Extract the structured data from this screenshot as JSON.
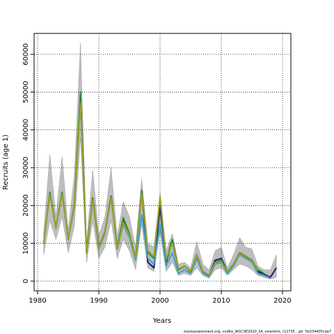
{
  "chart_data": {
    "type": "line",
    "xlabel": "Years",
    "ylabel": "Recruits (age 1)",
    "footnote": "stockassessment.org, cod6a_WGCSE2020_1A_newretro, r12735 , git: 5b334405cda7",
    "x": [
      1981,
      1982,
      1983,
      1984,
      1985,
      1986,
      1987,
      1988,
      1989,
      1990,
      1991,
      1992,
      1993,
      1994,
      1995,
      1996,
      1997,
      1998,
      1999,
      2000,
      2001,
      2002,
      2003,
      2004,
      2005,
      2006,
      2007,
      2008,
      2009,
      2010,
      2011,
      2012,
      2013,
      2014,
      2015,
      2016,
      2017,
      2018,
      2019
    ],
    "band": {
      "color": "#bebebe",
      "upper": [
        13000,
        33500,
        17000,
        33000,
        13500,
        28000,
        63000,
        10000,
        29500,
        12000,
        17000,
        30000,
        12000,
        21000,
        17000,
        9000,
        27000,
        10000,
        9000,
        23000,
        8000,
        12500,
        4500,
        5000,
        3500,
        10500,
        4500,
        3000,
        8000,
        9000,
        3500,
        7000,
        11500,
        9000,
        8500,
        4000,
        3000,
        3000,
        7000
      ],
      "lower": [
        7000,
        16000,
        11000,
        17000,
        7500,
        14500,
        38000,
        5000,
        16000,
        6000,
        9000,
        16000,
        6000,
        11000,
        8000,
        3000,
        15000,
        3500,
        2500,
        13000,
        2500,
        5000,
        1500,
        2000,
        1500,
        3500,
        1500,
        700,
        3000,
        3500,
        1500,
        3000,
        4500,
        4000,
        3000,
        1500,
        1000,
        500,
        1000
      ]
    },
    "series": [
      {
        "color": "#1a1a6e",
        "values": [
          10000,
          23500,
          14000,
          23500,
          11000,
          20000,
          49000,
          7500,
          22000,
          9000,
          13000,
          22500,
          9000,
          16500,
          12500,
          6000,
          23500,
          5000,
          3500,
          20000,
          5000,
          10500,
          3000,
          4000,
          2500,
          7000,
          2500,
          1500,
          5500,
          6000,
          2500,
          4500,
          7500,
          6500,
          5500,
          2500,
          1800,
          1000,
          3500
        ]
      },
      {
        "color": "#3aa0d0",
        "values": [
          10000,
          23500,
          14000,
          23500,
          11000,
          20000,
          48500,
          7500,
          21500,
          8500,
          12500,
          22000,
          8500,
          15000,
          11500,
          5500,
          17500,
          6000,
          4500,
          15000,
          4000,
          7500,
          2000,
          3000,
          2000,
          6000,
          2000,
          1200,
          4500,
          5000,
          2000,
          4000,
          7000,
          6000,
          5000,
          2000,
          1500,
          800,
          null
        ]
      },
      {
        "color": "#2e8b2e",
        "values": [
          10000,
          23500,
          14000,
          23500,
          11000,
          20000,
          50000,
          7500,
          22000,
          9000,
          13000,
          22500,
          9000,
          16800,
          12500,
          6000,
          24000,
          7500,
          6000,
          22000,
          5500,
          11000,
          3000,
          4000,
          2500,
          7000,
          2500,
          1500,
          5000,
          5500,
          2500,
          4500,
          7500,
          6500,
          5500,
          3000,
          2000,
          null,
          null
        ]
      },
      {
        "color": "#9aa02a",
        "values": [
          10000,
          23000,
          14000,
          23000,
          11000,
          19500,
          47000,
          7300,
          21500,
          8800,
          12800,
          22000,
          8800,
          15500,
          12000,
          6000,
          23000,
          8000,
          6500,
          22500,
          5800,
          10000,
          3200,
          4000,
          2700,
          7000,
          2600,
          1600,
          4800,
          5200,
          2500,
          4500,
          7300,
          6300,
          5300,
          2800,
          null,
          null,
          null
        ]
      }
    ],
    "xlim": [
      1979.43,
      2021.36
    ],
    "ylim": [
      -2577,
      65520
    ],
    "xticks": [
      1980,
      1990,
      2000,
      2010,
      2020
    ],
    "yticks": [
      0,
      10000,
      20000,
      30000,
      40000,
      50000,
      60000
    ],
    "grid": true
  }
}
